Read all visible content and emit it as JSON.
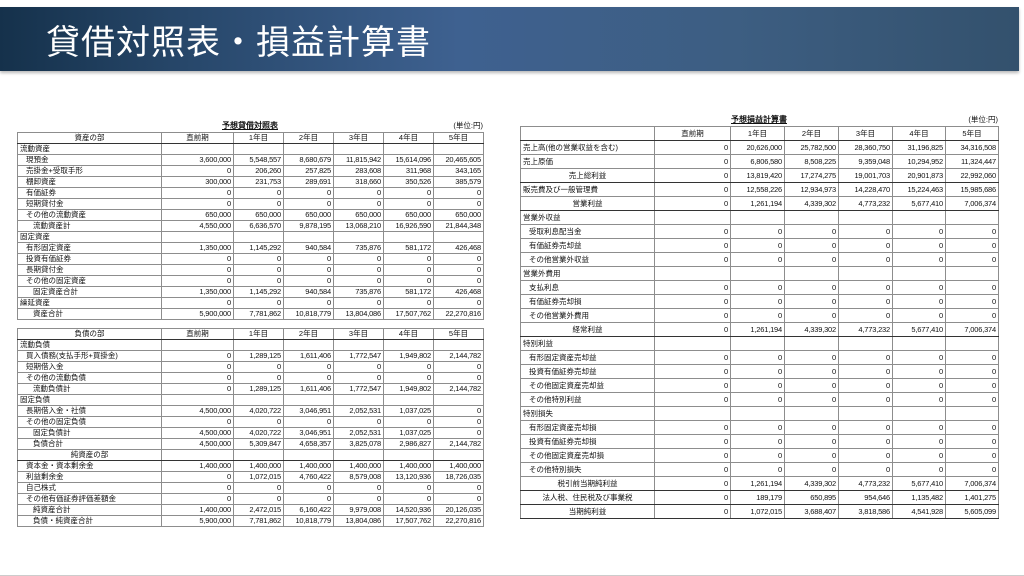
{
  "header": {
    "title": "貸借対照表・損益計算書"
  },
  "balance_sheet": {
    "title": "予想貸借対照表",
    "unit": "(単位:円)",
    "columns": [
      "直前期",
      "1年目",
      "2年目",
      "3年目",
      "4年目",
      "5年目"
    ],
    "assets": {
      "header": "資産の部",
      "rows": [
        {
          "label": "流動資産",
          "type": "section",
          "values": [
            "",
            "",
            "",
            "",
            "",
            ""
          ]
        },
        {
          "label": "現預金",
          "type": "item",
          "values": [
            "3,600,000",
            "5,548,557",
            "8,680,679",
            "11,815,942",
            "15,614,096",
            "20,465,605"
          ]
        },
        {
          "label": "売掛金+受取手形",
          "type": "item",
          "values": [
            "0",
            "206,260",
            "257,825",
            "283,608",
            "311,968",
            "343,165"
          ]
        },
        {
          "label": "棚卸資産",
          "type": "item",
          "values": [
            "300,000",
            "231,753",
            "289,691",
            "318,660",
            "350,526",
            "385,579"
          ]
        },
        {
          "label": "有価証券",
          "type": "item",
          "values": [
            "0",
            "0",
            "0",
            "0",
            "0",
            "0"
          ]
        },
        {
          "label": "短期貸付金",
          "type": "item",
          "values": [
            "0",
            "0",
            "0",
            "0",
            "0",
            "0"
          ]
        },
        {
          "label": "その他の流動資産",
          "type": "item",
          "values": [
            "650,000",
            "650,000",
            "650,000",
            "650,000",
            "650,000",
            "650,000"
          ]
        },
        {
          "label": "流動資産計",
          "type": "total",
          "values": [
            "4,550,000",
            "6,636,570",
            "9,878,195",
            "13,068,210",
            "16,926,590",
            "21,844,348"
          ]
        },
        {
          "label": "固定資産",
          "type": "section",
          "values": [
            "",
            "",
            "",
            "",
            "",
            ""
          ]
        },
        {
          "label": "有形固定資産",
          "type": "item",
          "values": [
            "1,350,000",
            "1,145,292",
            "940,584",
            "735,876",
            "581,172",
            "426,468"
          ]
        },
        {
          "label": "投資有価証券",
          "type": "item",
          "values": [
            "0",
            "0",
            "0",
            "0",
            "0",
            "0"
          ]
        },
        {
          "label": "長期貸付金",
          "type": "item",
          "values": [
            "0",
            "0",
            "0",
            "0",
            "0",
            "0"
          ]
        },
        {
          "label": "その他の固定資産",
          "type": "item",
          "values": [
            "0",
            "0",
            "0",
            "0",
            "0",
            "0"
          ]
        },
        {
          "label": "固定資産合計",
          "type": "total",
          "values": [
            "1,350,000",
            "1,145,292",
            "940,584",
            "735,876",
            "581,172",
            "426,468"
          ]
        },
        {
          "label": "繰延資産",
          "type": "item0",
          "values": [
            "0",
            "0",
            "0",
            "0",
            "0",
            "0"
          ]
        },
        {
          "label": "資産合計",
          "type": "total",
          "values": [
            "5,900,000",
            "7,781,862",
            "10,818,779",
            "13,804,086",
            "17,507,762",
            "22,270,816"
          ]
        }
      ]
    },
    "liabilities": {
      "header": "負債の部",
      "rows": [
        {
          "label": "流動負債",
          "type": "section",
          "values": [
            "",
            "",
            "",
            "",
            "",
            ""
          ]
        },
        {
          "label": "買入債務(支払手形+買掛金)",
          "type": "item",
          "values": [
            "0",
            "1,289,125",
            "1,611,406",
            "1,772,547",
            "1,949,802",
            "2,144,782"
          ]
        },
        {
          "label": "短期借入金",
          "type": "item",
          "values": [
            "0",
            "0",
            "0",
            "0",
            "0",
            "0"
          ]
        },
        {
          "label": "その他の流動負債",
          "type": "item",
          "values": [
            "0",
            "0",
            "0",
            "0",
            "0",
            "0"
          ]
        },
        {
          "label": "流動負債計",
          "type": "total",
          "values": [
            "0",
            "1,289,125",
            "1,611,406",
            "1,772,547",
            "1,949,802",
            "2,144,782"
          ]
        },
        {
          "label": "固定負債",
          "type": "section",
          "values": [
            "",
            "",
            "",
            "",
            "",
            ""
          ]
        },
        {
          "label": "長期借入金・社債",
          "type": "item",
          "values": [
            "4,500,000",
            "4,020,722",
            "3,046,951",
            "2,052,531",
            "1,037,025",
            "0"
          ]
        },
        {
          "label": "その他の固定負債",
          "type": "item",
          "values": [
            "0",
            "0",
            "0",
            "0",
            "0",
            "0"
          ]
        },
        {
          "label": "固定負債計",
          "type": "total",
          "values": [
            "4,500,000",
            "4,020,722",
            "3,046,951",
            "2,052,531",
            "1,037,025",
            "0"
          ]
        },
        {
          "label": "負債合計",
          "type": "total",
          "values": [
            "4,500,000",
            "5,309,847",
            "4,658,357",
            "3,825,078",
            "2,986,827",
            "2,144,782"
          ]
        },
        {
          "label": "純資産の部",
          "type": "center",
          "values": [
            "",
            "",
            "",
            "",
            "",
            ""
          ]
        },
        {
          "label": "資本金・資本剰余金",
          "type": "item",
          "values": [
            "1,400,000",
            "1,400,000",
            "1,400,000",
            "1,400,000",
            "1,400,000",
            "1,400,000"
          ]
        },
        {
          "label": "利益剰余金",
          "type": "item",
          "values": [
            "0",
            "1,072,015",
            "4,760,422",
            "8,579,008",
            "13,120,936",
            "18,726,035"
          ]
        },
        {
          "label": "自己株式",
          "type": "item",
          "values": [
            "0",
            "0",
            "0",
            "0",
            "0",
            "0"
          ]
        },
        {
          "label": "その他有価証券評価差額金",
          "type": "item",
          "values": [
            "0",
            "0",
            "0",
            "0",
            "0",
            "0"
          ]
        },
        {
          "label": "純資産合計",
          "type": "total",
          "values": [
            "1,400,000",
            "2,472,015",
            "6,160,422",
            "9,979,008",
            "14,520,936",
            "20,126,035"
          ]
        },
        {
          "label": "負債・純資産合計",
          "type": "total",
          "values": [
            "5,900,000",
            "7,781,862",
            "10,818,779",
            "13,804,086",
            "17,507,762",
            "22,270,816"
          ]
        }
      ]
    }
  },
  "profit_loss": {
    "title": "予想損益計算書",
    "unit": "(単位:円)",
    "header": "",
    "columns": [
      "直前期",
      "1年目",
      "2年目",
      "3年目",
      "4年目",
      "5年目"
    ],
    "rows": [
      {
        "label": "売上高(他の営業収益を含む)",
        "type": "item0",
        "values": [
          "0",
          "20,626,000",
          "25,782,500",
          "28,360,750",
          "31,196,825",
          "34,316,508"
        ]
      },
      {
        "label": "売上原価",
        "type": "item0",
        "values": [
          "0",
          "6,806,580",
          "8,508,225",
          "9,359,048",
          "10,294,952",
          "11,324,447"
        ]
      },
      {
        "label": "売上総利益",
        "type": "center",
        "values": [
          "0",
          "13,819,420",
          "17,274,275",
          "19,001,703",
          "20,901,873",
          "22,992,060"
        ]
      },
      {
        "label": "販売費及び一般管理費",
        "type": "item0",
        "values": [
          "0",
          "12,558,226",
          "12,934,973",
          "14,228,470",
          "15,224,463",
          "15,985,686"
        ]
      },
      {
        "label": "営業利益",
        "type": "center",
        "values": [
          "0",
          "1,261,194",
          "4,339,302",
          "4,773,232",
          "5,677,410",
          "7,006,374"
        ]
      },
      {
        "label": "営業外収益",
        "type": "section",
        "values": [
          "",
          "",
          "",
          "",
          "",
          ""
        ]
      },
      {
        "label": "受取利息配当金",
        "type": "item",
        "values": [
          "0",
          "0",
          "0",
          "0",
          "0",
          "0"
        ]
      },
      {
        "label": "有価証券売却益",
        "type": "item",
        "values": [
          "0",
          "0",
          "0",
          "0",
          "0",
          "0"
        ]
      },
      {
        "label": "その他営業外収益",
        "type": "item",
        "values": [
          "0",
          "0",
          "0",
          "0",
          "0",
          "0"
        ]
      },
      {
        "label": "営業外費用",
        "type": "section",
        "values": [
          "",
          "",
          "",
          "",
          "",
          ""
        ]
      },
      {
        "label": "支払利息",
        "type": "item",
        "values": [
          "0",
          "0",
          "0",
          "0",
          "0",
          "0"
        ]
      },
      {
        "label": "有価証券売却損",
        "type": "item",
        "values": [
          "0",
          "0",
          "0",
          "0",
          "0",
          "0"
        ]
      },
      {
        "label": "その他営業外費用",
        "type": "item",
        "values": [
          "0",
          "0",
          "0",
          "0",
          "0",
          "0"
        ]
      },
      {
        "label": "経常利益",
        "type": "center",
        "values": [
          "0",
          "1,261,194",
          "4,339,302",
          "4,773,232",
          "5,677,410",
          "7,006,374"
        ]
      },
      {
        "label": "特別利益",
        "type": "section",
        "values": [
          "",
          "",
          "",
          "",
          "",
          ""
        ]
      },
      {
        "label": "有形固定資産売却益",
        "type": "item",
        "values": [
          "0",
          "0",
          "0",
          "0",
          "0",
          "0"
        ]
      },
      {
        "label": "投資有価証券売却益",
        "type": "item",
        "values": [
          "0",
          "0",
          "0",
          "0",
          "0",
          "0"
        ]
      },
      {
        "label": "その他固定資産売却益",
        "type": "item",
        "values": [
          "0",
          "0",
          "0",
          "0",
          "0",
          "0"
        ]
      },
      {
        "label": "その他特別利益",
        "type": "item",
        "values": [
          "0",
          "0",
          "0",
          "0",
          "0",
          "0"
        ]
      },
      {
        "label": "特別損失",
        "type": "section",
        "values": [
          "",
          "",
          "",
          "",
          "",
          ""
        ]
      },
      {
        "label": "有形固定資産売却損",
        "type": "item",
        "values": [
          "0",
          "0",
          "0",
          "0",
          "0",
          "0"
        ]
      },
      {
        "label": "投資有価証券売却損",
        "type": "item",
        "values": [
          "0",
          "0",
          "0",
          "0",
          "0",
          "0"
        ]
      },
      {
        "label": "その他固定資産売却損",
        "type": "item",
        "values": [
          "0",
          "0",
          "0",
          "0",
          "0",
          "0"
        ]
      },
      {
        "label": "その他特別損失",
        "type": "item",
        "values": [
          "0",
          "0",
          "0",
          "0",
          "0",
          "0"
        ]
      },
      {
        "label": "税引前当期純利益",
        "type": "center",
        "values": [
          "0",
          "1,261,194",
          "4,339,302",
          "4,773,232",
          "5,677,410",
          "7,006,374"
        ]
      },
      {
        "label": "法人税、住民税及び事業税",
        "type": "center",
        "values": [
          "0",
          "189,179",
          "650,895",
          "954,646",
          "1,135,482",
          "1,401,275"
        ]
      },
      {
        "label": "当期純利益",
        "type": "center",
        "values": [
          "0",
          "1,072,015",
          "3,688,407",
          "3,818,586",
          "4,541,928",
          "5,605,099"
        ]
      }
    ]
  }
}
